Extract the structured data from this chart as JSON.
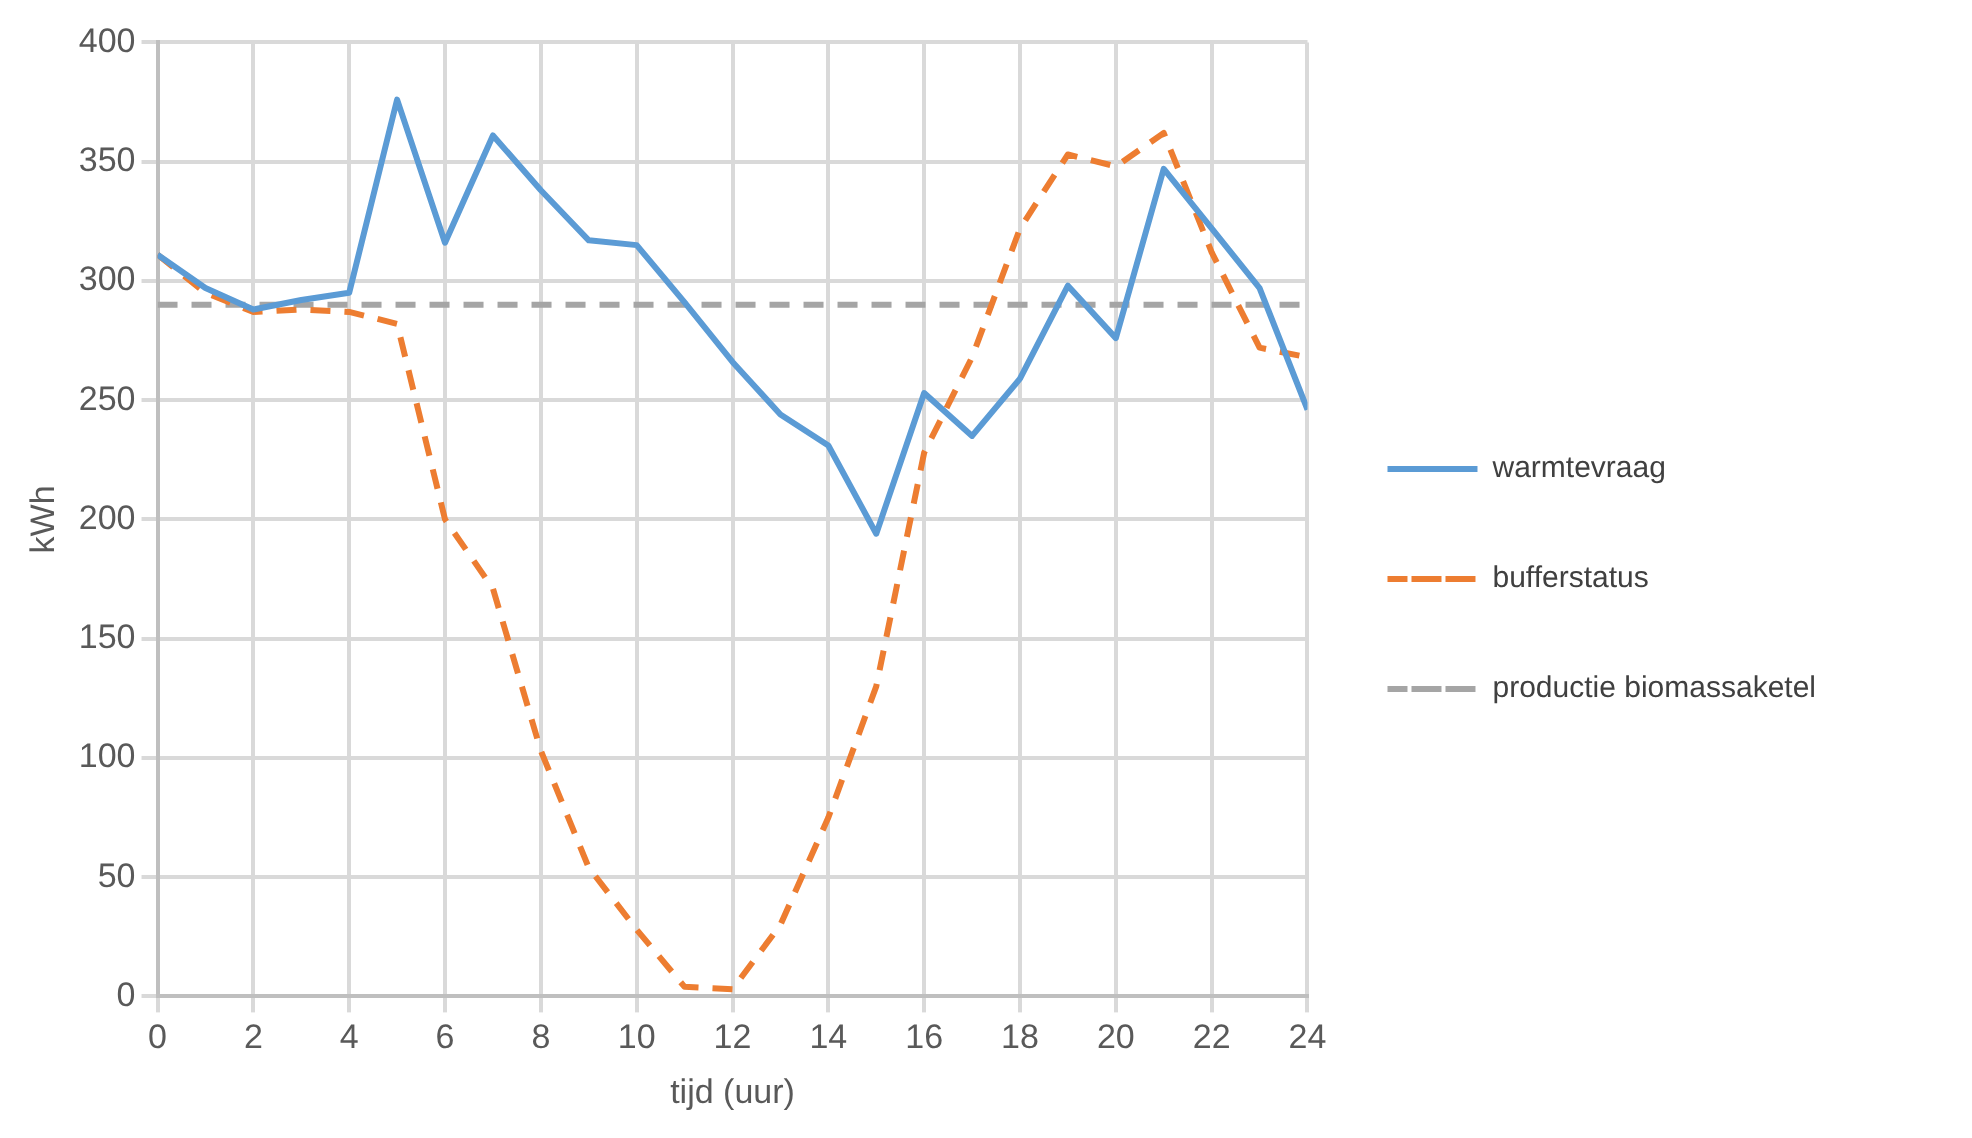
{
  "chart_data": {
    "type": "line",
    "xlabel": "tijd (uur)",
    "ylabel": "kWh",
    "x": [
      0,
      1,
      2,
      3,
      4,
      5,
      6,
      7,
      8,
      9,
      10,
      11,
      12,
      13,
      14,
      15,
      16,
      17,
      18,
      19,
      20,
      21,
      22,
      23,
      24
    ],
    "series": [
      {
        "name": "warmtevraag",
        "color": "#5b9bd5",
        "line_style": "solid",
        "values": [
          311,
          297,
          288,
          292,
          295,
          376,
          316,
          361,
          338,
          317,
          315,
          291,
          266,
          244,
          231,
          194,
          253,
          235,
          259,
          298,
          276,
          347,
          322,
          297,
          246
        ]
      },
      {
        "name": "bufferstatus",
        "color": "#ed7d31",
        "line_style": "dashed",
        "values": [
          311,
          295,
          287,
          288,
          287,
          282,
          200,
          171,
          103,
          54,
          28,
          4,
          3,
          30,
          75,
          130,
          228,
          268,
          322,
          353,
          348,
          362,
          312,
          272,
          268
        ]
      },
      {
        "name": "productie biomassaketel",
        "color": "#a5a5a5",
        "line_style": "dashed",
        "x": [
          0,
          24
        ],
        "values": [
          290,
          290
        ]
      }
    ],
    "xlim": [
      0,
      24
    ],
    "xticks": [
      0,
      2,
      4,
      6,
      8,
      10,
      12,
      14,
      16,
      18,
      20,
      22,
      24
    ],
    "ylim": [
      0,
      400
    ],
    "yticks": [
      0,
      50,
      100,
      150,
      200,
      250,
      300,
      350,
      400
    ],
    "grid": true,
    "legend": "right",
    "marker": "none"
  }
}
